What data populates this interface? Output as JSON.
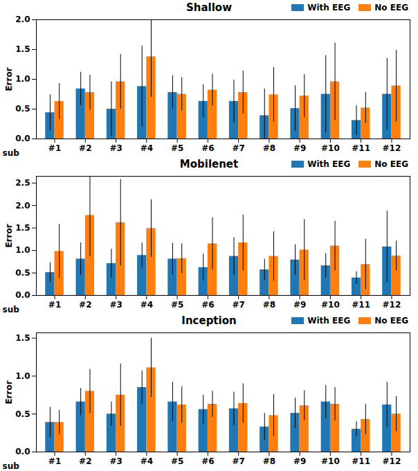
{
  "chart_data": [
    {
      "type": "bar",
      "title": "Shallow",
      "ylabel": "Error",
      "xlabel": "sub",
      "categories": [
        "#1",
        "#2",
        "#3",
        "#4",
        "#5",
        "#6",
        "#7",
        "#8",
        "#9",
        "#10",
        "#11",
        "#12"
      ],
      "series": [
        {
          "name": "With EEG",
          "color": "#1f77b4",
          "values": [
            0.44,
            0.84,
            0.5,
            0.88,
            0.78,
            0.63,
            0.63,
            0.39,
            0.51,
            0.75,
            0.31,
            0.75
          ],
          "error": [
            0.3,
            0.28,
            0.46,
            0.68,
            0.28,
            0.28,
            0.36,
            0.45,
            0.38,
            0.65,
            0.25,
            0.6
          ]
        },
        {
          "name": "No EEG",
          "color": "#ff7f0e",
          "values": [
            0.63,
            0.78,
            0.96,
            1.38,
            0.75,
            0.82,
            0.78,
            0.74,
            0.72,
            0.96,
            0.52,
            0.89
          ],
          "error": [
            0.3,
            0.29,
            0.46,
            0.68,
            0.28,
            0.27,
            0.36,
            0.46,
            0.36,
            0.65,
            0.26,
            0.6
          ]
        }
      ],
      "ylim": [
        0,
        2.0
      ],
      "yticks": [
        {
          "value": 0,
          "label": "0.0"
        },
        {
          "value": 0.5,
          "label": "0.5"
        },
        {
          "value": 1,
          "label": "1.0"
        },
        {
          "value": 1.5,
          "label": "1.5"
        },
        {
          "value": 2,
          "label": "2.0"
        }
      ],
      "legend": "upper right",
      "grid": false
    },
    {
      "type": "bar",
      "title": "Mobilenet",
      "ylabel": "Error",
      "xlabel": "sub",
      "categories": [
        "#1",
        "#2",
        "#3",
        "#4",
        "#5",
        "#6",
        "#7",
        "#8",
        "#9",
        "#10",
        "#11",
        "#12"
      ],
      "series": [
        {
          "name": "With EEG",
          "color": "#1f77b4",
          "values": [
            0.51,
            0.81,
            0.71,
            0.89,
            0.81,
            0.62,
            0.87,
            0.57,
            0.79,
            0.66,
            0.39,
            1.08
          ],
          "error": [
            0.22,
            0.36,
            0.32,
            0.28,
            0.35,
            0.3,
            0.42,
            0.24,
            0.34,
            0.27,
            0.14,
            0.8
          ]
        },
        {
          "name": "No EEG",
          "color": "#ff7f0e",
          "values": [
            0.98,
            1.78,
            1.62,
            1.49,
            0.82,
            1.15,
            1.17,
            0.87,
            1.01,
            1.1,
            0.69,
            0.88
          ],
          "error": [
            0.6,
            0.92,
            0.96,
            0.64,
            0.33,
            0.58,
            0.62,
            0.55,
            0.68,
            0.55,
            0.56,
            0.33
          ]
        }
      ],
      "ylim": [
        0,
        2.65
      ],
      "yticks": [
        {
          "value": 0,
          "label": "0.0"
        },
        {
          "value": 0.5,
          "label": "0.5"
        },
        {
          "value": 1,
          "label": "1.0"
        },
        {
          "value": 1.5,
          "label": "1.5"
        },
        {
          "value": 2,
          "label": "2.0"
        },
        {
          "value": 2.5,
          "label": "2.5"
        }
      ],
      "legend": "upper right",
      "grid": false
    },
    {
      "type": "bar",
      "title": "Inception",
      "ylabel": "Error",
      "xlabel": "sub",
      "categories": [
        "#1",
        "#2",
        "#3",
        "#4",
        "#5",
        "#6",
        "#7",
        "#8",
        "#9",
        "#10",
        "#11",
        "#12"
      ],
      "series": [
        {
          "name": "With EEG",
          "color": "#1f77b4",
          "values": [
            0.39,
            0.66,
            0.5,
            0.85,
            0.66,
            0.56,
            0.57,
            0.33,
            0.51,
            0.66,
            0.3,
            0.62
          ],
          "error": [
            0.2,
            0.18,
            0.16,
            0.22,
            0.26,
            0.19,
            0.22,
            0.18,
            0.2,
            0.22,
            0.1,
            0.3
          ]
        },
        {
          "name": "No EEG",
          "color": "#ff7f0e",
          "values": [
            0.39,
            0.8,
            0.75,
            1.11,
            0.62,
            0.63,
            0.64,
            0.48,
            0.61,
            0.63,
            0.43,
            0.5
          ],
          "error": [
            0.16,
            0.29,
            0.41,
            0.39,
            0.24,
            0.17,
            0.26,
            0.28,
            0.2,
            0.22,
            0.2,
            0.23
          ]
        }
      ],
      "ylim": [
        0,
        1.57
      ],
      "yticks": [
        {
          "value": 0,
          "label": "0.0"
        },
        {
          "value": 0.5,
          "label": "0.5"
        },
        {
          "value": 1,
          "label": "1.0"
        },
        {
          "value": 1.5,
          "label": "1.5"
        }
      ],
      "legend": "upper right",
      "grid": false
    }
  ]
}
